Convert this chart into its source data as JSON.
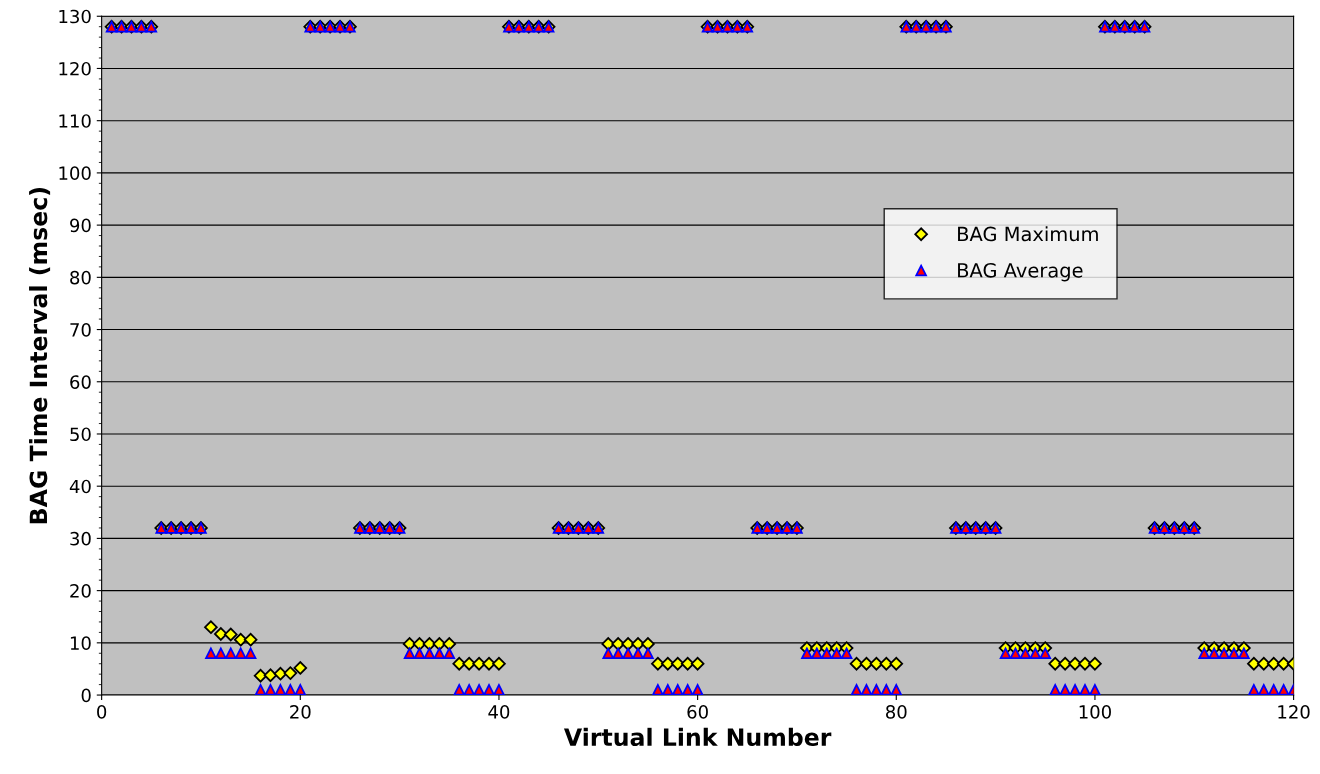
{
  "chart_data": {
    "type": "scatter",
    "xlabel": "Virtual Link Number",
    "ylabel": "BAG Time Interval (msec)",
    "x": [
      1,
      2,
      3,
      4,
      5,
      6,
      7,
      8,
      9,
      10,
      11,
      12,
      13,
      14,
      15,
      16,
      17,
      18,
      19,
      20,
      21,
      22,
      23,
      24,
      25,
      26,
      27,
      28,
      29,
      30,
      31,
      32,
      33,
      34,
      35,
      36,
      37,
      38,
      39,
      40,
      41,
      42,
      43,
      44,
      45,
      46,
      47,
      48,
      49,
      50,
      51,
      52,
      53,
      54,
      55,
      56,
      57,
      58,
      59,
      60,
      61,
      62,
      63,
      64,
      65,
      66,
      67,
      68,
      69,
      70,
      71,
      72,
      73,
      74,
      75,
      76,
      77,
      78,
      79,
      80,
      81,
      82,
      83,
      84,
      85,
      86,
      87,
      88,
      89,
      90,
      91,
      92,
      93,
      94,
      95,
      96,
      97,
      98,
      99,
      100,
      101,
      102,
      103,
      104,
      105,
      106,
      107,
      108,
      109,
      110,
      111,
      112,
      113,
      114,
      115,
      116,
      117,
      118,
      119,
      120
    ],
    "series": [
      {
        "name": "BAG Maximum",
        "color": "#ffff00",
        "marker": "diamond",
        "values": [
          128,
          128,
          128,
          128,
          128,
          32,
          32,
          32,
          32,
          32,
          13,
          11.7,
          11.6,
          10.6,
          10.6,
          3.7,
          3.8,
          4.1,
          4.2,
          5.2,
          128,
          128,
          128,
          128,
          128,
          32,
          32,
          32,
          32,
          32,
          9.8,
          9.8,
          9.8,
          9.8,
          9.8,
          6,
          6,
          6,
          6,
          6,
          128,
          128,
          128,
          128,
          128,
          32,
          32,
          32,
          32,
          32,
          9.8,
          9.8,
          9.8,
          9.8,
          9.8,
          6,
          6,
          6,
          6,
          6,
          128,
          128,
          128,
          128,
          128,
          32,
          32,
          32,
          32,
          32,
          9,
          9,
          9,
          9,
          9,
          6,
          6,
          6,
          6,
          6,
          128,
          128,
          128,
          128,
          128,
          32,
          32,
          32,
          32,
          32,
          9,
          9,
          9,
          9,
          9,
          6,
          6,
          6,
          6,
          6,
          128,
          128,
          128,
          128,
          128,
          32,
          32,
          32,
          32,
          32,
          9,
          9,
          9,
          9,
          9,
          6,
          6,
          6,
          6,
          6
        ]
      },
      {
        "name": "BAG Average",
        "color": "#ff0000",
        "marker": "triangle",
        "values": [
          128,
          128,
          128,
          128,
          128,
          32,
          32,
          32,
          32,
          32,
          8,
          8,
          8,
          8,
          8,
          1,
          1,
          1,
          1,
          1,
          128,
          128,
          128,
          128,
          128,
          32,
          32,
          32,
          32,
          32,
          8,
          8,
          8,
          8,
          8,
          1,
          1,
          1,
          1,
          1,
          128,
          128,
          128,
          128,
          128,
          32,
          32,
          32,
          32,
          32,
          8,
          8,
          8,
          8,
          8,
          1,
          1,
          1,
          1,
          1,
          128,
          128,
          128,
          128,
          128,
          32,
          32,
          32,
          32,
          32,
          8,
          8,
          8,
          8,
          8,
          1,
          1,
          1,
          1,
          1,
          128,
          128,
          128,
          128,
          128,
          32,
          32,
          32,
          32,
          32,
          8,
          8,
          8,
          8,
          8,
          1,
          1,
          1,
          1,
          1,
          128,
          128,
          128,
          128,
          128,
          32,
          32,
          32,
          32,
          32,
          8,
          8,
          8,
          8,
          8,
          1,
          1,
          1,
          1,
          1
        ]
      }
    ],
    "xlim": [
      0,
      120
    ],
    "xticks": [
      0,
      20,
      40,
      60,
      80,
      100,
      120
    ],
    "ylim": [
      0,
      130
    ],
    "yticks": [
      0,
      10,
      20,
      30,
      40,
      50,
      60,
      70,
      80,
      90,
      100,
      110,
      120,
      130
    ],
    "grid": "y",
    "legend": "right"
  }
}
